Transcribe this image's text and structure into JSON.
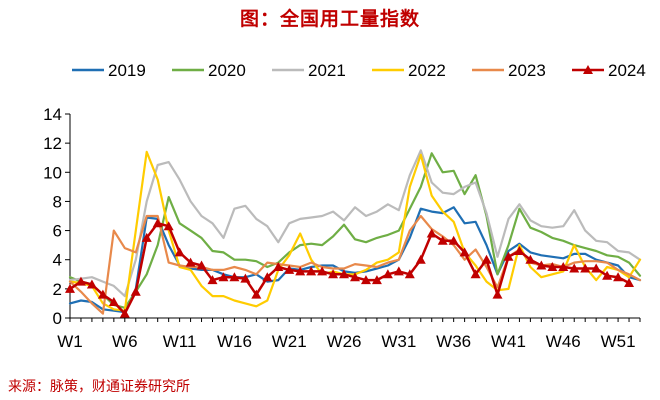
{
  "title": "图：全国用工量指数",
  "source": "来源：脉策，财通证券研究所",
  "chart_data": {
    "type": "line",
    "title": "图：全国用工量指数",
    "ylim": [
      0,
      14
    ],
    "y_ticks": [
      0,
      2,
      4,
      6,
      8,
      10,
      12,
      14
    ],
    "x_ticks": [
      "W1",
      "W6",
      "W11",
      "W16",
      "W21",
      "W26",
      "W31",
      "W36",
      "W41",
      "W46",
      "W51"
    ],
    "x_tick_weeks": [
      1,
      6,
      11,
      16,
      21,
      26,
      31,
      36,
      41,
      46,
      51
    ],
    "x_range": [
      1,
      53
    ],
    "grid": false,
    "legend_position": "top",
    "series": [
      {
        "name": "2019",
        "color": "#1f6fb4",
        "marker": "none",
        "x": [
          1,
          2,
          3,
          4,
          5,
          6,
          7,
          8,
          9,
          10,
          11,
          12,
          13,
          14,
          15,
          16,
          17,
          18,
          19,
          20,
          21,
          22,
          23,
          24,
          25,
          26,
          27,
          28,
          29,
          30,
          31,
          32,
          33,
          34,
          35,
          36,
          37,
          38,
          39,
          40,
          41,
          42,
          43,
          44,
          45,
          46,
          47,
          48,
          49,
          50,
          51,
          52,
          53
        ],
        "values": [
          1.0,
          1.2,
          1.1,
          0.6,
          0.5,
          0.4,
          2.0,
          6.9,
          6.8,
          5.0,
          3.6,
          3.4,
          3.3,
          3.3,
          3.0,
          2.8,
          2.8,
          3.0,
          2.5,
          2.6,
          3.4,
          3.3,
          3.5,
          3.6,
          3.6,
          3.2,
          3.1,
          3.2,
          3.4,
          3.6,
          4.0,
          5.5,
          7.5,
          7.3,
          7.2,
          7.6,
          6.5,
          6.6,
          5.0,
          3.0,
          4.6,
          5.1,
          4.5,
          4.3,
          4.2,
          4.1,
          4.4,
          4.4,
          4.0,
          3.8,
          3.6,
          2.8,
          2.6
        ]
      },
      {
        "name": "2020",
        "color": "#6fae45",
        "marker": "none",
        "x": [
          1,
          2,
          3,
          4,
          5,
          6,
          7,
          8,
          9,
          10,
          11,
          12,
          13,
          14,
          15,
          16,
          17,
          18,
          19,
          20,
          21,
          22,
          23,
          24,
          25,
          26,
          27,
          28,
          29,
          30,
          31,
          32,
          33,
          34,
          35,
          36,
          37,
          38,
          39,
          40,
          41,
          42,
          43,
          44,
          45,
          46,
          47,
          48,
          49,
          50,
          51,
          52,
          53
        ],
        "values": [
          2.8,
          2.5,
          2.3,
          1.6,
          0.9,
          0.7,
          1.8,
          3.0,
          5.0,
          8.3,
          6.5,
          6.0,
          5.5,
          4.6,
          4.5,
          4.0,
          4.0,
          3.9,
          3.5,
          3.8,
          4.5,
          5.0,
          5.1,
          5.0,
          5.6,
          6.4,
          5.4,
          5.2,
          5.5,
          5.7,
          6.0,
          7.5,
          9.0,
          11.3,
          10.0,
          10.1,
          8.5,
          9.8,
          7.0,
          3.0,
          5.0,
          7.5,
          6.2,
          5.9,
          5.5,
          5.3,
          5.0,
          4.8,
          4.6,
          4.3,
          4.2,
          3.8,
          2.9
        ]
      },
      {
        "name": "2021",
        "color": "#bbbbbb",
        "marker": "none",
        "x": [
          1,
          2,
          3,
          4,
          5,
          6,
          7,
          8,
          9,
          10,
          11,
          12,
          13,
          14,
          15,
          16,
          17,
          18,
          19,
          20,
          21,
          22,
          23,
          24,
          25,
          26,
          27,
          28,
          29,
          30,
          31,
          32,
          33,
          34,
          35,
          36,
          37,
          38,
          39,
          40,
          41,
          42,
          43,
          44,
          45,
          46,
          47,
          48,
          49,
          50,
          51,
          52,
          53
        ],
        "values": [
          2.6,
          2.7,
          2.8,
          2.5,
          2.2,
          1.5,
          4.0,
          8.0,
          10.5,
          10.7,
          9.5,
          8.0,
          7.0,
          6.5,
          5.5,
          7.5,
          7.7,
          6.8,
          6.3,
          5.2,
          6.5,
          6.8,
          6.9,
          7.0,
          7.3,
          6.7,
          7.6,
          7.0,
          7.3,
          7.8,
          7.4,
          9.8,
          11.5,
          9.3,
          8.6,
          8.5,
          9.0,
          9.3,
          7.2,
          4.2,
          6.8,
          7.8,
          6.7,
          6.3,
          6.2,
          6.3,
          7.4,
          6.0,
          5.3,
          5.2,
          4.6,
          4.5,
          4.0
        ]
      },
      {
        "name": "2022",
        "color": "#ffcc00",
        "marker": "none",
        "x": [
          1,
          2,
          3,
          4,
          5,
          6,
          7,
          8,
          9,
          10,
          11,
          12,
          13,
          14,
          15,
          16,
          17,
          18,
          19,
          20,
          21,
          22,
          23,
          24,
          25,
          26,
          27,
          28,
          29,
          30,
          31,
          32,
          33,
          34,
          35,
          36,
          37,
          38,
          39,
          40,
          41,
          42,
          43,
          44,
          45,
          46,
          47,
          48,
          49,
          50,
          51,
          52,
          53
        ],
        "values": [
          2.5,
          2.4,
          2.2,
          1.0,
          0.6,
          0.5,
          6.0,
          11.4,
          9.5,
          6.0,
          3.5,
          3.3,
          2.2,
          1.5,
          1.5,
          1.2,
          1.0,
          0.8,
          1.2,
          3.3,
          4.3,
          5.8,
          4.0,
          3.0,
          3.2,
          3.0,
          3.0,
          3.3,
          3.8,
          4.0,
          4.5,
          9.0,
          11.2,
          8.4,
          7.3,
          6.6,
          4.5,
          3.6,
          2.5,
          1.9,
          2.0,
          5.0,
          3.5,
          2.8,
          3.0,
          3.2,
          5.0,
          3.5,
          2.6,
          3.5,
          3.3,
          2.8,
          4.0
        ]
      },
      {
        "name": "2023",
        "color": "#e8894b",
        "marker": "none",
        "x": [
          1,
          2,
          3,
          4,
          5,
          6,
          7,
          8,
          9,
          10,
          11,
          12,
          13,
          14,
          15,
          16,
          17,
          18,
          19,
          20,
          21,
          22,
          23,
          24,
          25,
          26,
          27,
          28,
          29,
          30,
          31,
          32,
          33,
          34,
          35,
          36,
          37,
          38,
          39,
          40,
          41,
          42,
          43,
          44,
          45,
          46,
          47,
          48,
          49,
          50,
          51,
          52,
          53
        ],
        "values": [
          2.5,
          1.8,
          1.0,
          0.3,
          6.0,
          4.8,
          4.5,
          7.0,
          7.0,
          3.8,
          3.6,
          3.5,
          3.5,
          3.3,
          3.3,
          3.5,
          3.3,
          3.0,
          3.8,
          3.7,
          3.6,
          3.5,
          3.8,
          3.5,
          3.4,
          3.4,
          3.7,
          3.6,
          3.5,
          3.8,
          4.0,
          6.0,
          7.0,
          6.1,
          5.6,
          5.0,
          4.0,
          4.7,
          3.5,
          2.1,
          4.2,
          4.7,
          3.8,
          3.6,
          3.7,
          3.5,
          3.8,
          3.9,
          3.9,
          3.8,
          3.3,
          3.0,
          2.6
        ]
      },
      {
        "name": "2024",
        "color": "#c00000",
        "marker": "triangle",
        "x": [
          1,
          2,
          3,
          4,
          5,
          6,
          7,
          8,
          9,
          10,
          11,
          12,
          13,
          14,
          15,
          16,
          17,
          18,
          19,
          20,
          21,
          22,
          23,
          24,
          25,
          26,
          27,
          28,
          29,
          30,
          31,
          32,
          33,
          34,
          35,
          36,
          37,
          38,
          39,
          40,
          41,
          42,
          43,
          44,
          45,
          46,
          47,
          48,
          49,
          50,
          51,
          52
        ],
        "values": [
          2.0,
          2.5,
          2.3,
          1.6,
          1.1,
          0.3,
          1.8,
          5.5,
          6.5,
          6.3,
          4.5,
          3.8,
          3.6,
          2.6,
          2.8,
          2.8,
          2.7,
          1.6,
          2.8,
          3.5,
          3.3,
          3.2,
          3.2,
          3.2,
          3.0,
          3.0,
          2.8,
          2.6,
          2.6,
          3.0,
          3.2,
          3.0,
          4.0,
          5.8,
          5.3,
          5.3,
          4.5,
          3.0,
          4.0,
          1.6,
          4.2,
          4.6,
          4.0,
          3.6,
          3.5,
          3.5,
          3.4,
          3.4,
          3.4,
          2.9,
          2.8,
          2.4
        ]
      }
    ]
  }
}
